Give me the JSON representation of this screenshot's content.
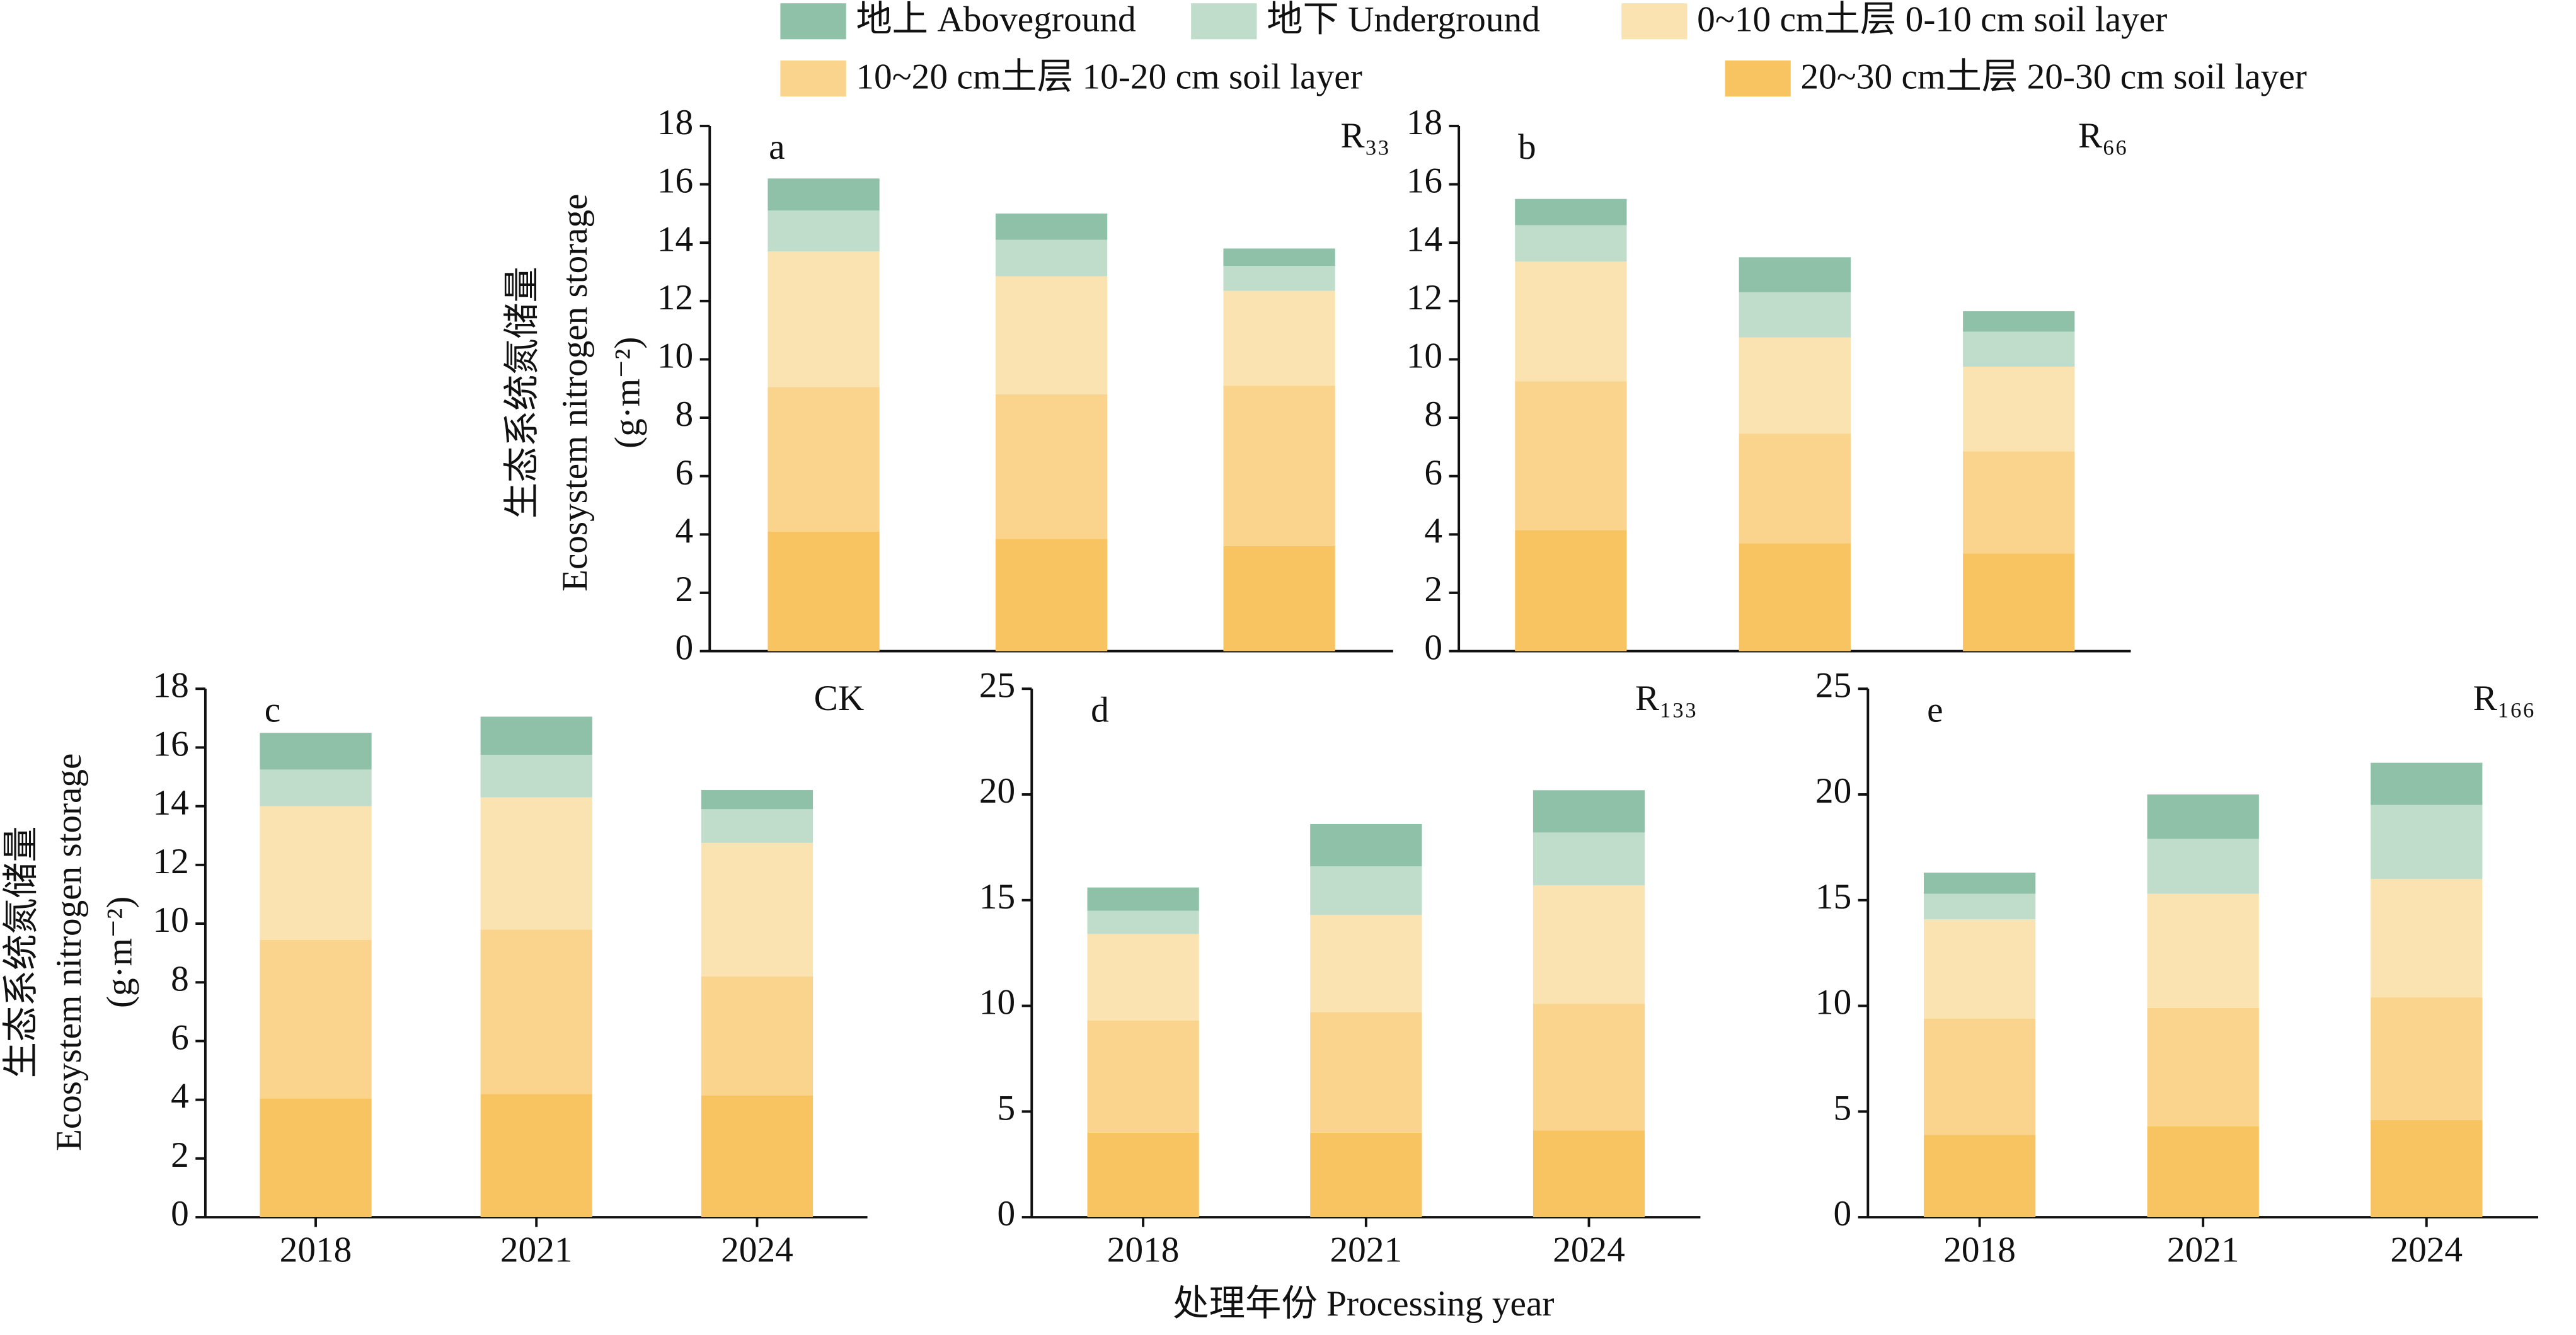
{
  "chart_data": [
    {
      "type": "bar",
      "stacked": true,
      "panel_label": "a",
      "annotation": "R₃₃",
      "y_label": [
        "生态系统氮储量",
        "Ecosystem nitrogen storage",
        "(g·m⁻²)"
      ],
      "ylim": [
        0,
        18
      ],
      "yticks": [
        0,
        2,
        4,
        6,
        8,
        10,
        12,
        14,
        16,
        18
      ],
      "series": [
        {
          "name": "地上 Aboveground",
          "color": "#8fc1a9",
          "values": [
            1.1,
            0.9,
            0.6
          ]
        },
        {
          "name": "地下 Underground",
          "color": "#c0dccb",
          "values": [
            1.4,
            1.25,
            0.85
          ]
        },
        {
          "name": "0~10 cm土层 0-10 cm soil layer",
          "color": "#fae3b0",
          "values": [
            4.65,
            4.05,
            3.25
          ]
        },
        {
          "name": "10~20 cm土层 10-20 cm soil layer",
          "color": "#fad48c",
          "values": [
            4.95,
            4.95,
            5.5
          ]
        },
        {
          "name": "20~30 cm土层 20-30 cm soil layer",
          "color": "#f8c462",
          "values": [
            4.1,
            3.85,
            3.6
          ]
        }
      ]
    },
    {
      "type": "bar",
      "stacked": true,
      "panel_label": "b",
      "annotation": "R₆₆",
      "ylim": [
        0,
        18
      ],
      "yticks": [
        0,
        2,
        4,
        6,
        8,
        10,
        12,
        14,
        16,
        18
      ],
      "series": [
        {
          "color": "#8fc1a9",
          "values": [
            0.9,
            1.2,
            0.7
          ]
        },
        {
          "color": "#c0dccb",
          "values": [
            1.25,
            1.55,
            1.2
          ]
        },
        {
          "color": "#fae3b0",
          "values": [
            4.1,
            3.3,
            2.9
          ]
        },
        {
          "color": "#fad48c",
          "values": [
            5.1,
            3.75,
            3.5
          ]
        },
        {
          "color": "#f8c462",
          "values": [
            4.15,
            3.7,
            3.35
          ]
        }
      ]
    },
    {
      "type": "bar",
      "stacked": true,
      "panel_label": "c",
      "annotation": "CK",
      "y_label": [
        "生态系统氮储量",
        "Ecosystem nitrogen storage",
        "(g·m⁻²)"
      ],
      "categories": [
        "2018",
        "2021",
        "2024"
      ],
      "ylim": [
        0,
        18
      ],
      "yticks": [
        0,
        2,
        4,
        6,
        8,
        10,
        12,
        14,
        16,
        18
      ],
      "series": [
        {
          "color": "#8fc1a9",
          "values": [
            1.25,
            1.3,
            0.65
          ]
        },
        {
          "color": "#c0dccb",
          "values": [
            1.25,
            1.45,
            1.15
          ]
        },
        {
          "color": "#fae3b0",
          "values": [
            4.55,
            4.5,
            4.55
          ]
        },
        {
          "color": "#fad48c",
          "values": [
            5.4,
            5.6,
            4.05
          ]
        },
        {
          "color": "#f8c462",
          "values": [
            4.05,
            4.2,
            4.15
          ]
        }
      ]
    },
    {
      "type": "bar",
      "stacked": true,
      "panel_label": "d",
      "annotation": "R₁₃₃",
      "x_label": "处理年份 Processing year",
      "categories": [
        "2018",
        "2021",
        "2024"
      ],
      "ylim": [
        0,
        25
      ],
      "yticks": [
        0,
        5,
        10,
        15,
        20,
        25
      ],
      "series": [
        {
          "color": "#8fc1a9",
          "values": [
            1.1,
            2.0,
            2.0
          ]
        },
        {
          "color": "#c0dccb",
          "values": [
            1.1,
            2.3,
            2.5
          ]
        },
        {
          "color": "#fae3b0",
          "values": [
            4.1,
            4.6,
            5.6
          ]
        },
        {
          "color": "#fad48c",
          "values": [
            5.3,
            5.7,
            6.0
          ]
        },
        {
          "color": "#f8c462",
          "values": [
            4.0,
            4.0,
            4.1
          ]
        }
      ]
    },
    {
      "type": "bar",
      "stacked": true,
      "panel_label": "e",
      "annotation": "R₁₆₆",
      "categories": [
        "2018",
        "2021",
        "2024"
      ],
      "ylim": [
        0,
        25
      ],
      "yticks": [
        0,
        5,
        10,
        15,
        20,
        25
      ],
      "series": [
        {
          "color": "#8fc1a9",
          "values": [
            1.0,
            2.1,
            2.0
          ]
        },
        {
          "color": "#c0dccb",
          "values": [
            1.2,
            2.6,
            3.5
          ]
        },
        {
          "color": "#fae3b0",
          "values": [
            4.7,
            5.4,
            5.6
          ]
        },
        {
          "color": "#fad48c",
          "values": [
            5.5,
            5.6,
            5.8
          ]
        },
        {
          "color": "#f8c462",
          "values": [
            3.9,
            4.3,
            4.6
          ]
        }
      ]
    }
  ]
}
